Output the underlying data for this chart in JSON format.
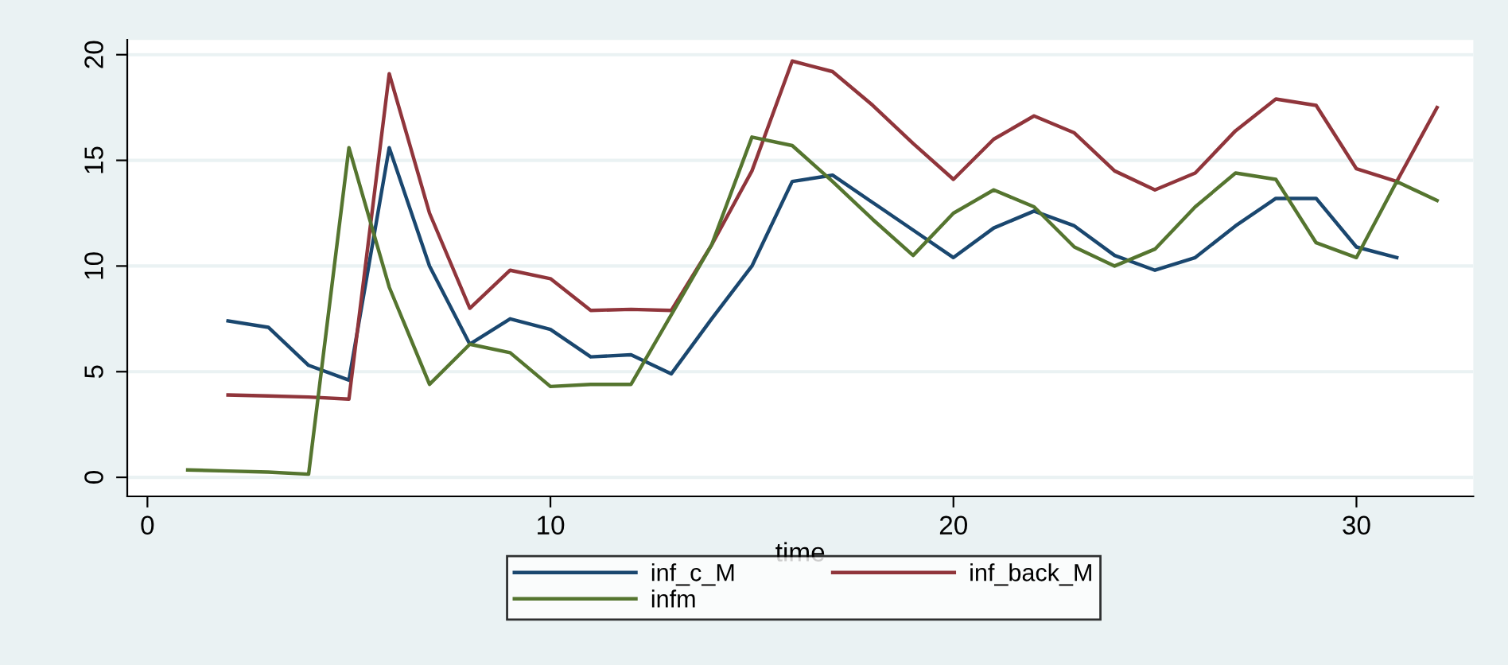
{
  "chart_data": {
    "type": "line",
    "xlabel": "time",
    "xlim": [
      -0.5,
      32.9
    ],
    "ylim": [
      -0.9,
      20.7
    ],
    "xticks": [
      0,
      10,
      20,
      30
    ],
    "yticks": [
      0,
      5,
      10,
      15,
      20
    ],
    "grid": "y",
    "legend": "bottom",
    "marker": "none",
    "line_style": "solid",
    "series": [
      {
        "name": "inf_c_M",
        "color": "#1a476f",
        "x": [
          2,
          3,
          4,
          5,
          6,
          7,
          8,
          9,
          10,
          11,
          12,
          13,
          14,
          15,
          16,
          17,
          18,
          19,
          20,
          21,
          22,
          23,
          24,
          25,
          26,
          27,
          28,
          29,
          30,
          31
        ],
        "values": [
          7.4,
          7.1,
          5.3,
          4.6,
          15.6,
          10.0,
          6.3,
          7.5,
          7.0,
          5.7,
          5.8,
          4.9,
          7.5,
          10.0,
          14.0,
          14.3,
          13.0,
          11.7,
          10.4,
          11.8,
          12.6,
          11.9,
          10.5,
          9.8,
          10.4,
          11.9,
          13.2,
          13.2,
          10.9,
          10.4
        ]
      },
      {
        "name": "inf_back_M",
        "color": "#90353b",
        "x": [
          2,
          3,
          4,
          5,
          6,
          7,
          8,
          9,
          10,
          11,
          12,
          13,
          14,
          15,
          16,
          17,
          18,
          19,
          20,
          21,
          22,
          23,
          24,
          25,
          26,
          27,
          28,
          29,
          30,
          31,
          32
        ],
        "values": [
          3.9,
          3.85,
          3.8,
          3.7,
          19.1,
          12.5,
          8.0,
          9.8,
          9.4,
          7.9,
          7.95,
          7.9,
          11.0,
          14.5,
          19.7,
          19.2,
          17.6,
          15.8,
          14.1,
          16.0,
          17.1,
          16.3,
          14.5,
          13.6,
          14.4,
          16.4,
          17.9,
          17.6,
          14.6,
          14.0,
          17.5
        ]
      },
      {
        "name": "infm",
        "color": "#55752f",
        "x": [
          1,
          2,
          3,
          4,
          5,
          6,
          7,
          8,
          9,
          10,
          11,
          12,
          13,
          14,
          15,
          16,
          17,
          18,
          19,
          20,
          21,
          22,
          23,
          24,
          25,
          26,
          27,
          28,
          29,
          30,
          31,
          32
        ],
        "values": [
          0.35,
          0.3,
          0.25,
          0.15,
          15.6,
          9.0,
          4.4,
          6.3,
          5.9,
          4.3,
          4.4,
          4.4,
          7.7,
          11.0,
          16.1,
          15.7,
          14.0,
          12.2,
          10.5,
          12.5,
          13.6,
          12.8,
          10.9,
          10.0,
          10.8,
          12.8,
          14.4,
          14.1,
          11.1,
          10.4,
          14.0,
          13.1
        ]
      }
    ]
  }
}
